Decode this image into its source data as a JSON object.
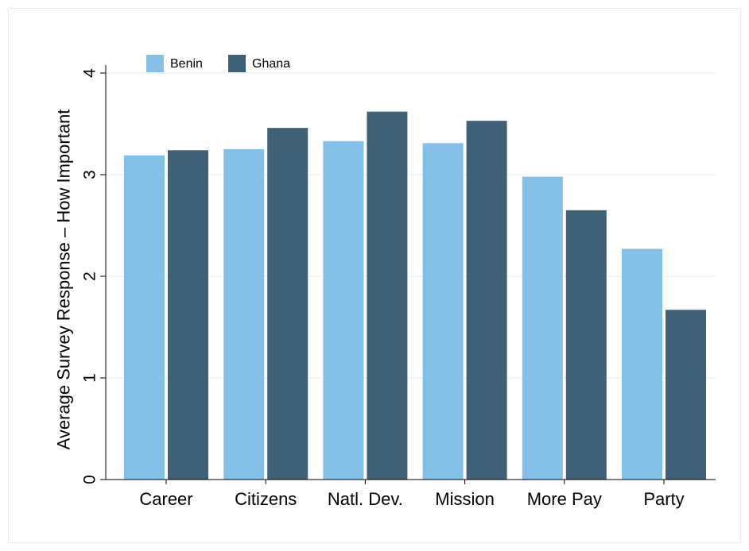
{
  "chart_data": {
    "type": "bar",
    "categories": [
      "Career",
      "Citizens",
      "Natl. Dev.",
      "Mission",
      "More Pay",
      "Party"
    ],
    "series": [
      {
        "name": "Benin",
        "values": [
          3.19,
          3.25,
          3.33,
          3.31,
          2.98,
          2.27
        ],
        "color": "#83bfe6"
      },
      {
        "name": "Ghana",
        "values": [
          3.24,
          3.46,
          3.62,
          3.53,
          2.65,
          1.67
        ],
        "color": "#3f6079"
      }
    ],
    "ylabel": "Average Survey Response – How Important",
    "xlabel": "",
    "ylim": [
      0,
      4
    ],
    "yticks": [
      "0",
      "1",
      "2",
      "3",
      "4"
    ],
    "grid": true,
    "legend_position": "top-left",
    "gridline_color": "#e6ecf0"
  }
}
